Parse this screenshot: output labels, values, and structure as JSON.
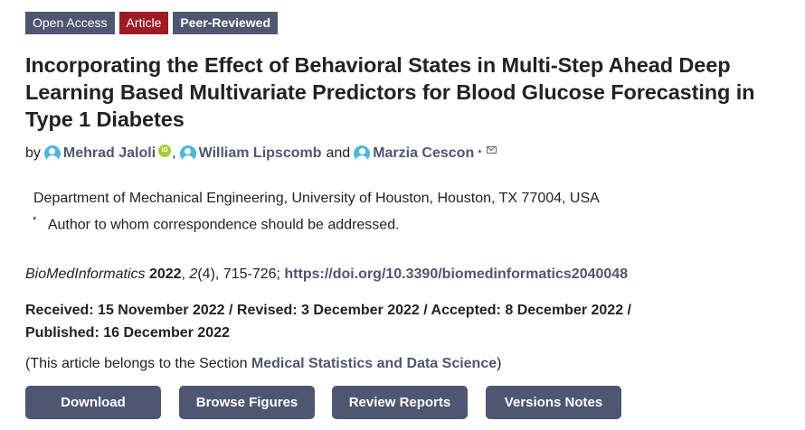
{
  "badges": {
    "open_access": "Open Access",
    "type": "Article",
    "review": "Peer-Reviewed"
  },
  "title": "Incorporating the Effect of Behavioral States in Multi-Step Ahead Deep Learning Based Multivariate Predictors for Blood Glucose Forecasting in Type 1 Diabetes",
  "authors": {
    "prefix": "by",
    "names": [
      "Mehrad Jaloli",
      "William Lipscomb",
      "Marzia Cescon"
    ],
    "separator": ",",
    "conjunction": "and",
    "orcid_label": "iD",
    "corresponding_mark": "*"
  },
  "affiliation": "Department of Mechanical Engineering, University of Houston, Houston, TX 77004, USA",
  "correspondence": {
    "mark": "*",
    "text": "Author to whom correspondence should be addressed."
  },
  "citation": {
    "journal": "BioMedInformatics",
    "year": "2022",
    "volume": "2",
    "issue": "(4)",
    "pages": ", 715-726; ",
    "doi": "https://doi.org/10.3390/biomedinformatics2040048"
  },
  "dates": {
    "line1": "Received: 15 November 2022 / Revised: 3 December 2022 / Accepted: 8 December 2022 /",
    "line2": "Published: 16 December 2022"
  },
  "section": {
    "prefix": "(This article belongs to the Section ",
    "name": "Medical Statistics and Data Science",
    "suffix": ")"
  },
  "buttons": {
    "download": "Download",
    "browse_figures": "Browse Figures",
    "review_reports": "Review Reports",
    "versions_notes": "Versions Notes"
  }
}
